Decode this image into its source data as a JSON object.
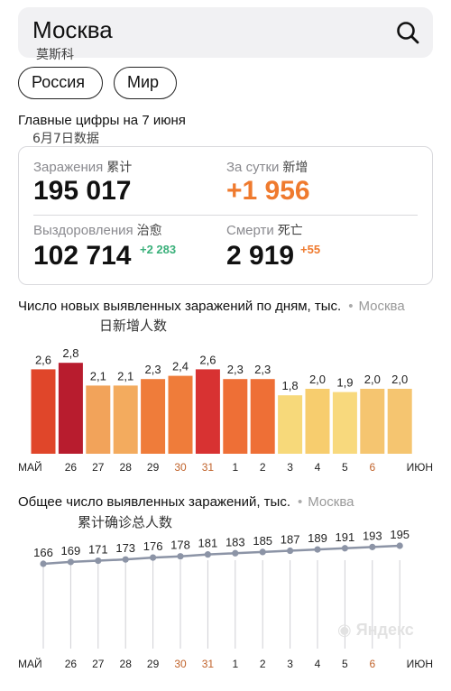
{
  "search": {
    "query": "Москва",
    "subtitle": "莫斯科",
    "icon": "search-icon"
  },
  "tabs": [
    {
      "label": "Россия"
    },
    {
      "label": "Мир"
    }
  ],
  "headline": {
    "title": "Главные цифры на 7 июня",
    "subtitle": "6月7日数据"
  },
  "stats": {
    "infections": {
      "label": "Заражения",
      "label_cn": "累计",
      "value": "195 017"
    },
    "daily": {
      "label": "За сутки",
      "label_cn": "新增",
      "value": "+1 956"
    },
    "recovered": {
      "label": "Выздоровления",
      "label_cn": "治愈",
      "value": "102 714",
      "delta": "+2 283"
    },
    "deaths": {
      "label": "Смерти",
      "label_cn": "死亡",
      "value": "2 919",
      "delta": "+55"
    }
  },
  "chart1_title": {
    "text": "Число новых выявленных заражений по дням, тыс.",
    "region": "Москва",
    "cn": "日新增人数"
  },
  "chart2_title": {
    "text": "Общее число выявленных заражений, тыс.",
    "region": "Москва",
    "cn": "累计确诊总人数"
  },
  "colors": {
    "accent_orange": "#ef7a2e",
    "green": "#3ab07a",
    "gray_text": "#8a8a8f",
    "line": "#8c94a6"
  },
  "watermark": "Яндекс",
  "chart_data": [
    {
      "type": "bar",
      "categories": [
        "МАЙ",
        "26",
        "27",
        "28",
        "29",
        "30",
        "31",
        "1",
        "2",
        "3",
        "4",
        "5",
        "6",
        "ИЮН"
      ],
      "values": [
        "2,6",
        "2,8",
        "2,1",
        "2,1",
        "2,3",
        "2,4",
        "2,6",
        "2,3",
        "2,3",
        "1,8",
        "2,0",
        "1,9",
        "2,0",
        "2,0"
      ],
      "numeric": [
        2.6,
        2.8,
        2.1,
        2.1,
        2.3,
        2.4,
        2.6,
        2.3,
        2.3,
        1.8,
        2.0,
        1.9,
        2.0,
        2.0
      ],
      "colors": [
        "#e0462a",
        "#b81c2e",
        "#f2a35a",
        "#f3ab5e",
        "#ef7c3a",
        "#ef7c3a",
        "#d83232",
        "#ee6f36",
        "#ee6f36",
        "#f7d97a",
        "#f7cd6e",
        "#f8d97d",
        "#f5c570",
        "#f5c570"
      ],
      "highlight_ticks": [
        "30",
        "31",
        "6"
      ],
      "ylim": [
        0,
        2.8
      ]
    },
    {
      "type": "line",
      "categories": [
        "МАЙ",
        "26",
        "27",
        "28",
        "29",
        "30",
        "31",
        "1",
        "2",
        "3",
        "4",
        "5",
        "6",
        "ИЮН"
      ],
      "values": [
        166,
        169,
        171,
        173,
        176,
        178,
        181,
        183,
        185,
        187,
        189,
        191,
        193,
        195
      ],
      "highlight_ticks": [
        "30",
        "31",
        "6"
      ]
    }
  ]
}
